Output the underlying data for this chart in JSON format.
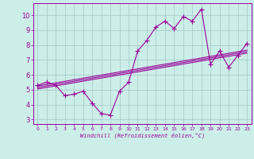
{
  "xlabel": "Windchill (Refroidissement éolien,°C)",
  "bg_color": "#cceee8",
  "grid_color": "#aacccc",
  "line_color": "#990099",
  "xlim": [
    -0.5,
    23.5
  ],
  "ylim": [
    2.7,
    10.8
  ],
  "xticks": [
    0,
    1,
    2,
    3,
    4,
    5,
    6,
    7,
    8,
    9,
    10,
    11,
    12,
    13,
    14,
    15,
    16,
    17,
    18,
    19,
    20,
    21,
    22,
    23
  ],
  "yticks": [
    3,
    4,
    5,
    6,
    7,
    8,
    9,
    10
  ],
  "main_series_x": [
    0,
    1,
    2,
    3,
    4,
    5,
    6,
    7,
    8,
    9,
    10,
    11,
    12,
    13,
    14,
    15,
    16,
    17,
    18,
    19,
    20,
    21,
    22,
    23
  ],
  "main_series_y": [
    5.3,
    5.5,
    5.3,
    4.6,
    4.7,
    4.9,
    4.1,
    3.4,
    3.3,
    4.9,
    5.5,
    7.6,
    8.3,
    9.2,
    9.6,
    9.1,
    9.9,
    9.6,
    10.4,
    6.7,
    7.6,
    6.5,
    7.3,
    8.1
  ],
  "reg_line1_x": [
    0,
    23
  ],
  "reg_line1_y": [
    5.25,
    7.65
  ],
  "reg_line2_x": [
    0,
    23
  ],
  "reg_line2_y": [
    5.15,
    7.55
  ],
  "reg_line3_x": [
    0,
    23
  ],
  "reg_line3_y": [
    5.05,
    7.45
  ]
}
